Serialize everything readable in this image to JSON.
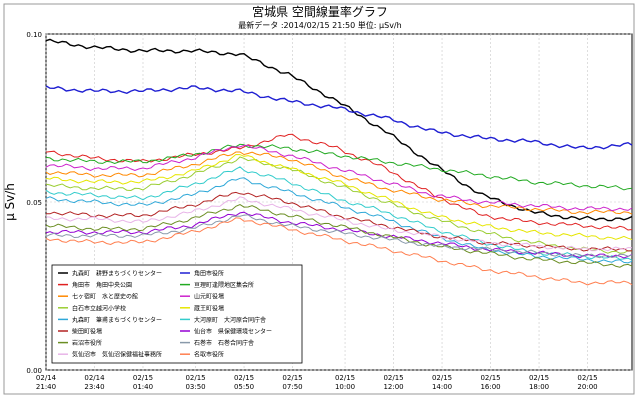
{
  "header": {
    "title": "宮城県 空間線量率グラフ",
    "subtitle": "最新データ :2014/02/15 21:50  単位: μSv/h"
  },
  "chart_data": {
    "type": "line",
    "title": "宮城県 空間線量率グラフ",
    "subtitle": "最新データ :2014/02/15 21:50  単位: μSv/h",
    "ylabel": "μ Sv/h",
    "xlabel": "",
    "ylim": [
      0.0,
      0.1
    ],
    "y_ticks": [
      "0.00",
      "0.05",
      "0.10"
    ],
    "x_range": [
      "2014-02-14 21:40",
      "2014-02-15 21:50"
    ],
    "x_ticks": [
      {
        "date": "02/14",
        "time": "21:40"
      },
      {
        "date": "02/14",
        "time": "23:40"
      },
      {
        "date": "02/15",
        "time": "01:40"
      },
      {
        "date": "02/15",
        "time": "03:50"
      },
      {
        "date": "02/15",
        "time": "05:50"
      },
      {
        "date": "02/15",
        "time": "07:50"
      },
      {
        "date": "02/15",
        "time": "10:00"
      },
      {
        "date": "02/15",
        "time": "12:00"
      },
      {
        "date": "02/15",
        "time": "14:00"
      },
      {
        "date": "02/15",
        "time": "16:00"
      },
      {
        "date": "02/15",
        "time": "18:00"
      },
      {
        "date": "02/15",
        "time": "20:00"
      }
    ],
    "grid": true,
    "legend_position": "bottom-left",
    "series": [
      {
        "name": "丸森町　耕野まちづくりセンター",
        "color": "#000000",
        "hours": [
          0,
          2,
          4,
          6,
          8,
          10,
          12,
          14,
          16,
          18,
          20,
          22,
          24
        ],
        "values": [
          0.098,
          0.096,
          0.095,
          0.095,
          0.094,
          0.088,
          0.08,
          0.071,
          0.061,
          0.052,
          0.047,
          0.045,
          0.045
        ]
      },
      {
        "name": "角田市役所",
        "color": "#1f1fd2",
        "hours": [
          0,
          2,
          4,
          6,
          8,
          10,
          12,
          14,
          16,
          18,
          20,
          22,
          24
        ],
        "values": [
          0.084,
          0.083,
          0.083,
          0.084,
          0.083,
          0.08,
          0.078,
          0.075,
          0.071,
          0.069,
          0.068,
          0.066,
          0.067
        ]
      },
      {
        "name": "角田市　角田中央公園",
        "color": "#e02020",
        "hours": [
          0,
          2,
          4,
          6,
          8,
          10,
          12,
          14,
          16,
          18,
          20,
          22,
          24
        ],
        "values": [
          0.065,
          0.063,
          0.062,
          0.064,
          0.066,
          0.07,
          0.066,
          0.06,
          0.052,
          0.046,
          0.044,
          0.043,
          0.042
        ]
      },
      {
        "name": "亘理町逢隈地区集会所",
        "color": "#22aa22",
        "hours": [
          0,
          2,
          4,
          6,
          8,
          10,
          12,
          14,
          16,
          18,
          20,
          22,
          24
        ],
        "values": [
          0.063,
          0.062,
          0.062,
          0.064,
          0.067,
          0.066,
          0.064,
          0.062,
          0.06,
          0.058,
          0.056,
          0.055,
          0.054
        ]
      },
      {
        "name": "七ヶ宿町　水と歴史の館",
        "color": "#ff8800",
        "hours": [
          0,
          2,
          4,
          6,
          8,
          10,
          12,
          14,
          16,
          18,
          20,
          22,
          24
        ],
        "values": [
          0.059,
          0.058,
          0.058,
          0.061,
          0.065,
          0.063,
          0.058,
          0.054,
          0.051,
          0.049,
          0.048,
          0.047,
          0.047
        ]
      },
      {
        "name": "山元町役場",
        "color": "#cc22cc",
        "hours": [
          0,
          2,
          4,
          6,
          8,
          10,
          12,
          14,
          16,
          18,
          20,
          22,
          24
        ],
        "values": [
          0.061,
          0.06,
          0.06,
          0.063,
          0.067,
          0.064,
          0.06,
          0.056,
          0.052,
          0.05,
          0.049,
          0.048,
          0.048
        ]
      },
      {
        "name": "白石市立越河小学校",
        "color": "#9acd32",
        "hours": [
          0,
          2,
          4,
          6,
          8,
          10,
          12,
          14,
          16,
          18,
          20,
          22,
          24
        ],
        "values": [
          0.055,
          0.054,
          0.054,
          0.058,
          0.063,
          0.06,
          0.055,
          0.05,
          0.045,
          0.041,
          0.038,
          0.036,
          0.035
        ]
      },
      {
        "name": "蔵王町役場",
        "color": "#e6e600",
        "hours": [
          0,
          2,
          4,
          6,
          8,
          10,
          12,
          14,
          16,
          18,
          20,
          22,
          24
        ],
        "values": [
          0.057,
          0.056,
          0.056,
          0.059,
          0.064,
          0.06,
          0.056,
          0.051,
          0.046,
          0.043,
          0.041,
          0.04,
          0.039
        ]
      },
      {
        "name": "丸森町　筆甫まちづくりセンター",
        "color": "#2fa8d8",
        "hours": [
          0,
          2,
          4,
          6,
          8,
          10,
          12,
          14,
          16,
          18,
          20,
          22,
          24
        ],
        "values": [
          0.051,
          0.05,
          0.049,
          0.052,
          0.057,
          0.053,
          0.049,
          0.045,
          0.04,
          0.036,
          0.034,
          0.033,
          0.032
        ]
      },
      {
        "name": "大河原町　大河原合同庁舎",
        "color": "#33cccc",
        "hours": [
          0,
          2,
          4,
          6,
          8,
          10,
          12,
          14,
          16,
          18,
          20,
          22,
          24
        ],
        "values": [
          0.053,
          0.052,
          0.051,
          0.055,
          0.06,
          0.056,
          0.051,
          0.047,
          0.042,
          0.038,
          0.035,
          0.034,
          0.033
        ]
      },
      {
        "name": "柴田町役場",
        "color": "#b22222",
        "hours": [
          0,
          2,
          4,
          6,
          8,
          10,
          12,
          14,
          16,
          18,
          20,
          22,
          24
        ],
        "values": [
          0.047,
          0.046,
          0.046,
          0.049,
          0.053,
          0.05,
          0.046,
          0.043,
          0.04,
          0.038,
          0.037,
          0.036,
          0.036
        ]
      },
      {
        "name": "仙台市　県保健環境センター",
        "color": "#9400d3",
        "hours": [
          0,
          2,
          4,
          6,
          8,
          10,
          12,
          14,
          16,
          18,
          20,
          22,
          24
        ],
        "values": [
          0.041,
          0.041,
          0.041,
          0.043,
          0.047,
          0.044,
          0.042,
          0.04,
          0.038,
          0.036,
          0.035,
          0.034,
          0.034
        ]
      },
      {
        "name": "岩沼市役所",
        "color": "#6b8e23",
        "hours": [
          0,
          2,
          4,
          6,
          8,
          10,
          12,
          14,
          16,
          18,
          20,
          22,
          24
        ],
        "values": [
          0.043,
          0.042,
          0.042,
          0.045,
          0.049,
          0.046,
          0.043,
          0.04,
          0.037,
          0.035,
          0.033,
          0.032,
          0.031
        ]
      },
      {
        "name": "石巻市　石巻合同庁舎",
        "color": "#8899aa",
        "hours": [
          0,
          2,
          4,
          6,
          8,
          10,
          12,
          14,
          16,
          18,
          20,
          22,
          24
        ],
        "values": [
          0.04,
          0.04,
          0.04,
          0.042,
          0.046,
          0.043,
          0.041,
          0.039,
          0.037,
          0.036,
          0.035,
          0.034,
          0.034
        ]
      },
      {
        "name": "気仙沼市　気仙沼保健福祉事務所",
        "color": "#e8b4e8",
        "hours": [
          0,
          2,
          4,
          6,
          8,
          10,
          12,
          14,
          16,
          18,
          20,
          22,
          24
        ],
        "values": [
          0.045,
          0.045,
          0.044,
          0.047,
          0.051,
          0.048,
          0.045,
          0.042,
          0.04,
          0.038,
          0.037,
          0.036,
          0.036
        ]
      },
      {
        "name": "名取市役所",
        "color": "#ff7f50",
        "hours": [
          0,
          2,
          4,
          6,
          8,
          10,
          12,
          14,
          16,
          18,
          20,
          22,
          24
        ],
        "values": [
          0.039,
          0.038,
          0.038,
          0.041,
          0.045,
          0.042,
          0.039,
          0.036,
          0.033,
          0.03,
          0.028,
          0.026,
          0.026
        ]
      }
    ]
  }
}
